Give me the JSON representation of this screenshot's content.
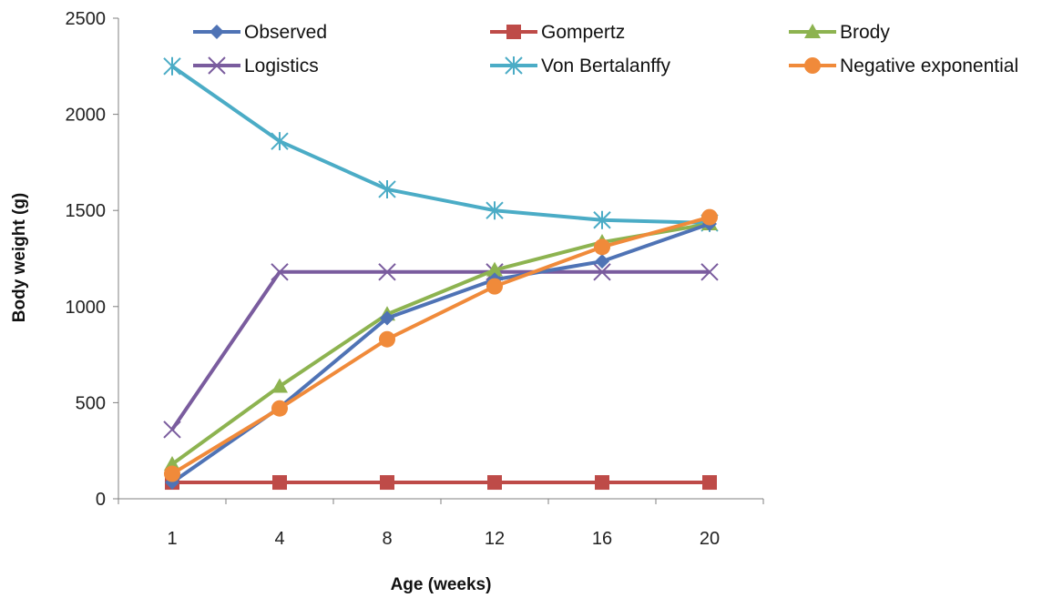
{
  "chart_data": {
    "type": "line",
    "title": "",
    "xlabel": "Age (weeks)",
    "ylabel": "Body weight (g)",
    "categories": [
      "1",
      "4",
      "8",
      "12",
      "16",
      "20"
    ],
    "ylim": [
      0,
      2500
    ],
    "yticks": [
      "0",
      "500",
      "1000",
      "1500",
      "2000",
      "2500"
    ],
    "grid": false,
    "legend_position": "top",
    "series": [
      {
        "name": "Observed",
        "color": "#4F73B5",
        "marker": "diamond",
        "values": [
          85,
          475,
          940,
          1140,
          1235,
          1430
        ]
      },
      {
        "name": "Gompertz",
        "color": "#BE4B48",
        "marker": "square",
        "values": [
          85,
          85,
          85,
          85,
          85,
          85
        ]
      },
      {
        "name": "Brody",
        "color": "#8DB350",
        "marker": "triangle",
        "values": [
          180,
          585,
          960,
          1190,
          1335,
          1430
        ]
      },
      {
        "name": "Logistics",
        "color": "#7A5C9E",
        "marker": "x",
        "values": [
          360,
          1180,
          1180,
          1180,
          1180,
          1180
        ]
      },
      {
        "name": "Von Bertalanffy",
        "color": "#4BACC6",
        "marker": "star",
        "values": [
          2250,
          1860,
          1610,
          1500,
          1450,
          1435
        ]
      },
      {
        "name": "Negative exponential",
        "color": "#F08A3A",
        "marker": "circle",
        "values": [
          130,
          470,
          830,
          1105,
          1310,
          1465
        ]
      }
    ]
  }
}
